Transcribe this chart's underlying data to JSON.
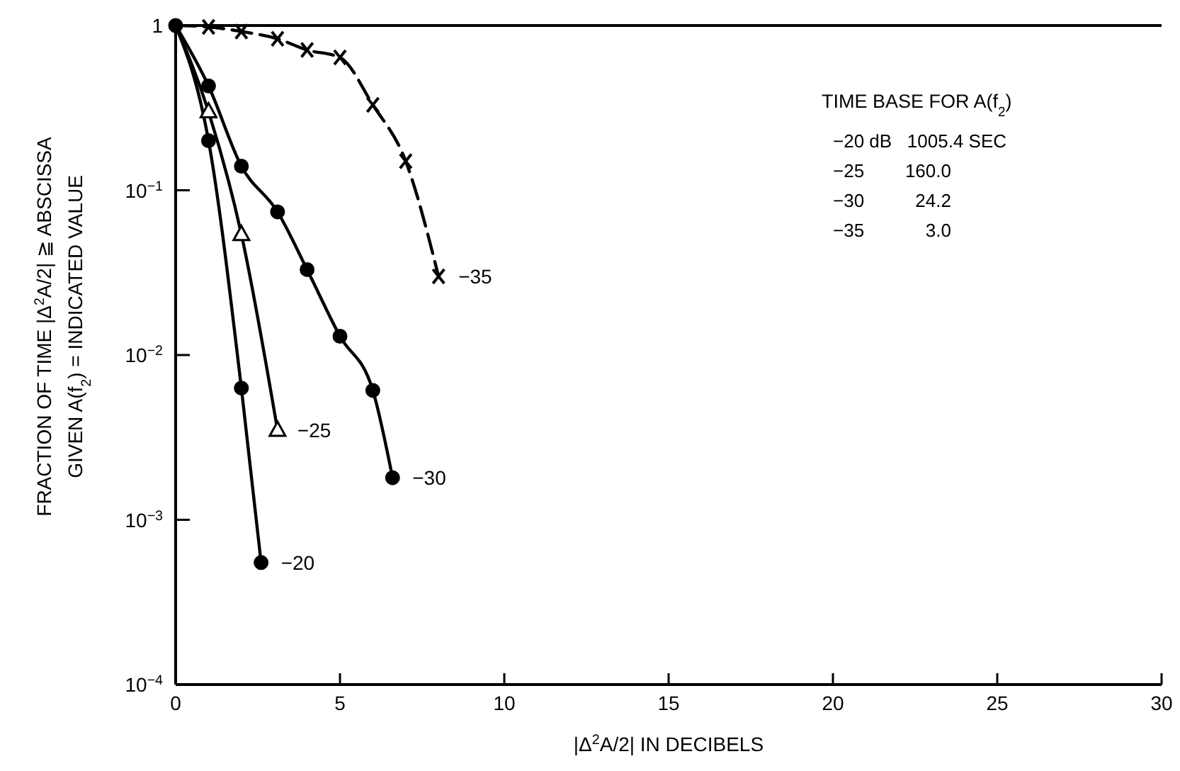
{
  "chart_data": {
    "type": "line",
    "xlabel": "|Δ$^{2}$A/2| IN DECIBELS",
    "ylabel": "FRACTION OF TIME |Δ$^{2}$A/2| ≧ ABSCISSA\nGIVEN A(f$_{2}$) = INDICATED VALUE",
    "xlim": [
      0,
      30
    ],
    "xticks": [
      0,
      5,
      10,
      15,
      20,
      25,
      30
    ],
    "ylim": [
      0.0001,
      1
    ],
    "yticks": [
      {
        "value": 1,
        "label": "1"
      },
      {
        "value": 0.1,
        "label": "10$^{−1}$"
      },
      {
        "value": 0.01,
        "label": "10$^{−2}$"
      },
      {
        "value": 0.001,
        "label": "10$^{−3}$"
      },
      {
        "value": 0.0001,
        "label": "10$^{−4}$"
      }
    ],
    "log": "y",
    "grid": false,
    "legend": false,
    "series": [
      {
        "name": "−20",
        "color": "#000000",
        "marker": "circle",
        "line_style": "solid",
        "x": [
          0,
          1,
          2,
          2.6
        ],
        "values": [
          1,
          0.2,
          0.0063,
          0.00055
        ]
      },
      {
        "name": "−25",
        "color": "#000000",
        "marker": "triangle",
        "line_style": "solid",
        "x": [
          0,
          1,
          2,
          3.1
        ],
        "values": [
          1,
          0.3,
          0.054,
          0.0035
        ]
      },
      {
        "name": "−30",
        "color": "#000000",
        "marker": "circle",
        "line_style": "solid",
        "x": [
          0,
          1,
          2,
          3.1,
          4,
          5,
          6,
          6.6
        ],
        "values": [
          1,
          0.43,
          0.14,
          0.074,
          0.033,
          0.013,
          0.0061,
          0.0018
        ]
      },
      {
        "name": "−35",
        "color": "#000000",
        "marker": "cross",
        "line_style": "dashed",
        "x": [
          0,
          1,
          2,
          3.1,
          4,
          5,
          6,
          7,
          8
        ],
        "values": [
          1,
          0.98,
          0.92,
          0.83,
          0.71,
          0.64,
          0.33,
          0.15,
          0.03
        ]
      }
    ],
    "annotations": [
      "TIME BASE FOR A(f$_{2}$)",
      "−20 dB   1005.4 SEC",
      "−25        160.0",
      "−30          24.2",
      "−35            3.0"
    ]
  }
}
